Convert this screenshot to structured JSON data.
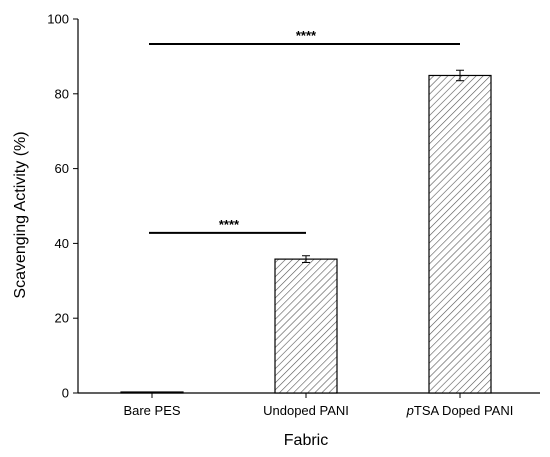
{
  "chart_data": {
    "type": "bar",
    "categories": [
      "Bare PES",
      "Undoped PANI",
      "TSA Doped PANI"
    ],
    "category_prefix_italic": [
      "",
      "",
      "p"
    ],
    "values": [
      0,
      35.8,
      84.9
    ],
    "errors": [
      0,
      0.9,
      1.4
    ],
    "xlabel": "Fabric",
    "ylabel": "Scavenging Activity (%)",
    "ylim": [
      0,
      100
    ],
    "yticks": [
      0,
      20,
      40,
      60,
      80,
      100
    ],
    "grid": false,
    "bar_fill": "diagonal-hatch",
    "significance": [
      {
        "from": 0,
        "to": 1,
        "y": 42.8,
        "label": "****"
      },
      {
        "from": 0,
        "to": 2,
        "y": 93.3,
        "label": "****"
      }
    ]
  }
}
